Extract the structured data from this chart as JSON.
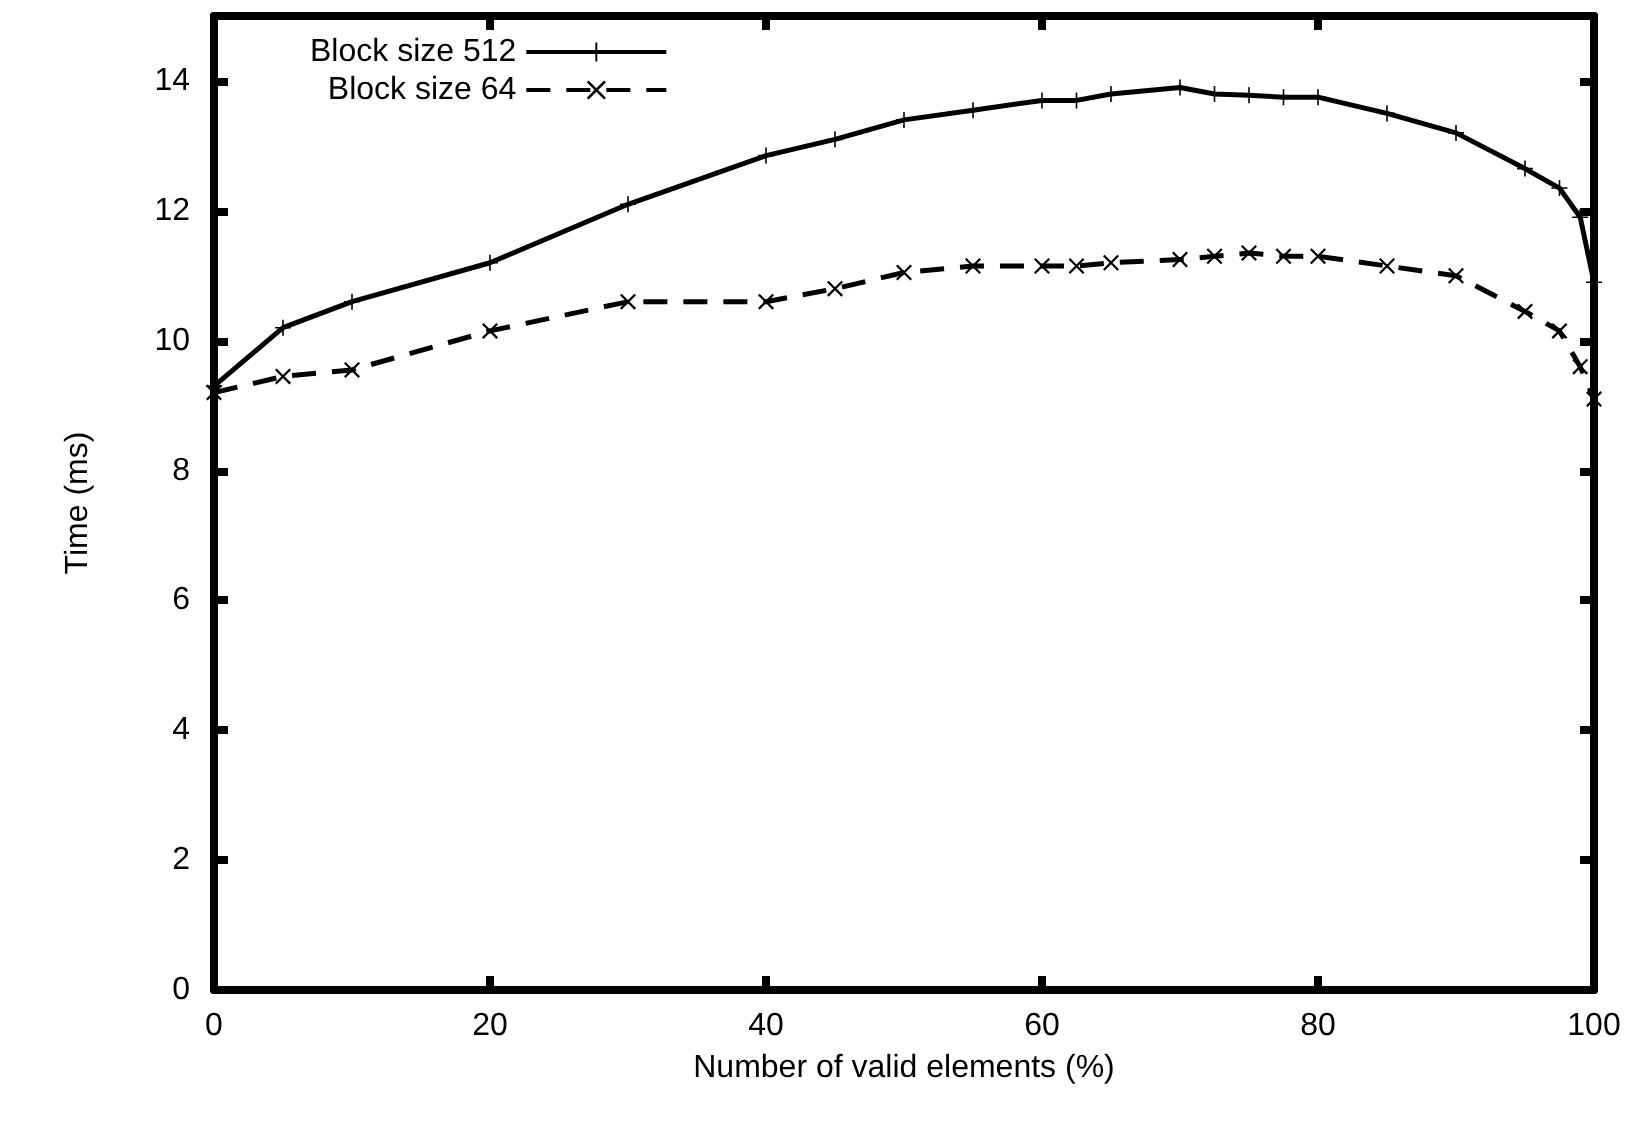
{
  "chart_data": {
    "type": "line",
    "xlabel": "Number of valid elements (%)",
    "ylabel": "Time (ms)",
    "xlim": [
      0,
      100
    ],
    "xticks": [
      0,
      20,
      40,
      60,
      80,
      100
    ],
    "ylim": [
      0,
      15
    ],
    "yticks": [
      0,
      2,
      4,
      6,
      8,
      10,
      12,
      14
    ],
    "grid": false,
    "legend": "top",
    "x": [
      0,
      5,
      10,
      20,
      30,
      40,
      45,
      50,
      55,
      60,
      62.5,
      65,
      70,
      72.5,
      75,
      77.5,
      80,
      85,
      90,
      95,
      97.5,
      99,
      100
    ],
    "series": [
      {
        "name": "Block size 512",
        "color": "#000000",
        "line_style": "solid",
        "marker": "cross",
        "values": [
          9.3,
          10.2,
          10.6,
          11.2,
          12.1,
          12.85,
          13.1,
          13.4,
          13.55,
          13.7,
          13.7,
          13.8,
          13.9,
          13.8,
          13.78,
          13.75,
          13.75,
          13.5,
          13.2,
          12.65,
          12.35,
          11.9,
          10.9
        ]
      },
      {
        "name": "Block size 64",
        "color": "#000000",
        "line_style": "dashed",
        "marker": "star",
        "values": [
          9.2,
          9.45,
          9.55,
          10.15,
          10.6,
          10.6,
          10.8,
          11.05,
          11.15,
          11.15,
          11.15,
          11.2,
          11.25,
          11.3,
          11.35,
          11.3,
          11.3,
          11.15,
          11.0,
          10.45,
          10.15,
          9.6,
          9.1
        ]
      }
    ]
  }
}
